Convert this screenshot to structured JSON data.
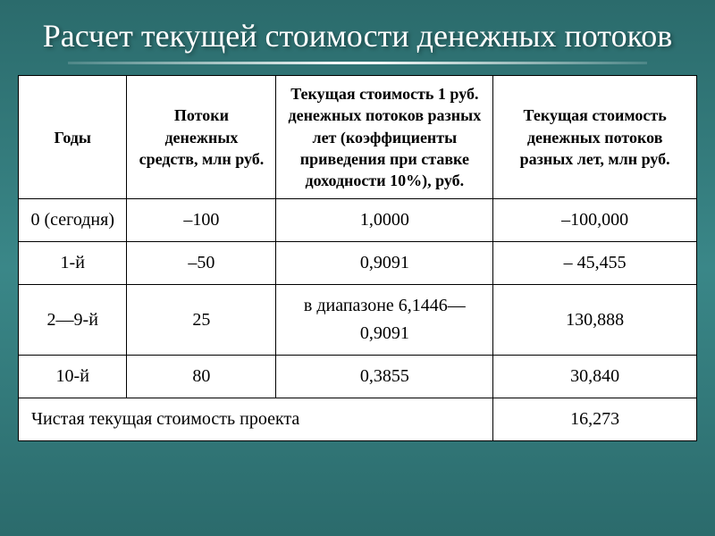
{
  "slide": {
    "title": "Расчет текущей стоимости денежных потоков",
    "background_gradient": [
      "#2b6b6c",
      "#3a8788",
      "#2b6b6c"
    ],
    "title_color": "#ffffff",
    "title_fontsize": 36
  },
  "table": {
    "type": "table",
    "border_color": "#000000",
    "background_color": "#ffffff",
    "text_color": "#000000",
    "header_fontsize": 18,
    "cell_fontsize": 20,
    "columns": [
      {
        "key": "years",
        "label": "Годы",
        "width_pct": 16
      },
      {
        "key": "flows",
        "label": "Потоки денежных средств, млн руб.",
        "width_pct": 22
      },
      {
        "key": "coef",
        "label": "Текущая стоимость 1 руб. денежных потоков разных лет (коэффициенты приведения при ставке доходности 10%), руб.",
        "width_pct": 32
      },
      {
        "key": "pv",
        "label": "Текущая стоимость денежных потоков разных лет, млн руб.",
        "width_pct": 30
      }
    ],
    "rows": [
      {
        "years": "0 (сегодня)",
        "flows": "–100",
        "coef": "1,0000",
        "pv": "–100,000"
      },
      {
        "years": "1-й",
        "flows": "–50",
        "coef": "0,9091",
        "pv": "– 45,455"
      },
      {
        "years": "2—9-й",
        "flows": "25",
        "coef": "в диапазоне 6,1446—0,9091",
        "pv": "130,888"
      },
      {
        "years": "10-й",
        "flows": "80",
        "coef": "0,3855",
        "pv": "30,840"
      }
    ],
    "footer": {
      "label": "Чистая текущая стоимость проекта",
      "value": "16,273",
      "label_colspan": 3
    }
  }
}
